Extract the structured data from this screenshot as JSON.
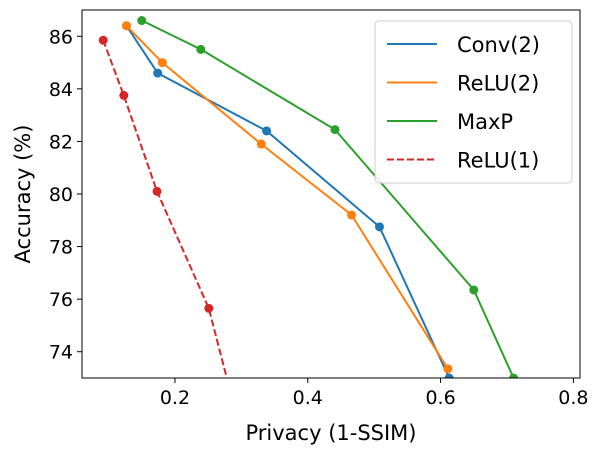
{
  "chart_data": {
    "type": "line",
    "xlabel": "Privacy (1-SSIM)",
    "ylabel": "Accuracy (%)",
    "xlim": [
      0.06,
      0.81
    ],
    "ylim": [
      73.0,
      87.0
    ],
    "xticks": [
      0.2,
      0.4,
      0.6,
      0.8
    ],
    "xtick_labels": [
      "0.2",
      "0.4",
      "0.6",
      "0.8"
    ],
    "yticks": [
      74,
      76,
      78,
      80,
      82,
      84,
      86
    ],
    "ytick_labels": [
      "74",
      "76",
      "78",
      "80",
      "82",
      "84",
      "86"
    ],
    "grid": false,
    "legend_position": "top-right",
    "series": [
      {
        "name": "Conv(2)",
        "color": "#1f77b4",
        "linestyle": "solid",
        "marker": "circle",
        "x": [
          0.127,
          0.174,
          0.338,
          0.508,
          0.613
        ],
        "y": [
          86.4,
          84.6,
          82.4,
          78.75,
          73.0
        ]
      },
      {
        "name": "ReLU(2)",
        "color": "#ff7f0e",
        "linestyle": "solid",
        "marker": "circle",
        "x": [
          0.127,
          0.181,
          0.33,
          0.466,
          0.611
        ],
        "y": [
          86.4,
          85.0,
          81.9,
          79.2,
          73.35
        ]
      },
      {
        "name": "MaxP",
        "color": "#2ca02c",
        "linestyle": "solid",
        "marker": "circle",
        "x": [
          0.15,
          0.239,
          0.441,
          0.65,
          0.71
        ],
        "y": [
          86.6,
          85.5,
          82.45,
          76.35,
          73.0
        ]
      },
      {
        "name": "ReLU(1)",
        "color": "#d62728",
        "linestyle": "dashed",
        "marker": "circle",
        "x": [
          0.092,
          0.123,
          0.173,
          0.251,
          0.278
        ],
        "y": [
          85.85,
          83.75,
          80.1,
          75.65,
          73.0
        ],
        "markers_visible": [
          true,
          true,
          true,
          true,
          false
        ]
      }
    ]
  }
}
